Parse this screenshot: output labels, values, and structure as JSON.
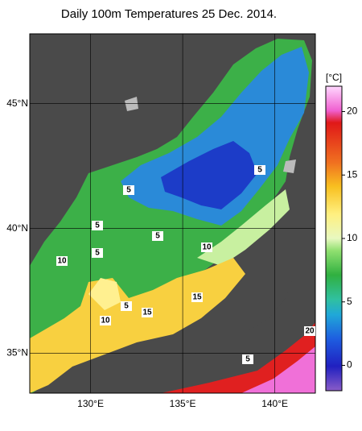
{
  "title": "Daily 100m Temperatures 25 Dec. 2014.",
  "lon_labels": [
    {
      "value": 130,
      "label": "130°E"
    },
    {
      "value": 135,
      "label": "135°E"
    },
    {
      "value": 140,
      "label": "140°E"
    }
  ],
  "lat_labels": [
    {
      "value": 45,
      "label": "45°N"
    },
    {
      "value": 40,
      "label": "40°N"
    },
    {
      "value": 35,
      "label": "35°N"
    }
  ],
  "lon_range": [
    126.7,
    142.2
  ],
  "lat_range": [
    33.4,
    47.8
  ],
  "colorbar": {
    "unit": "[°C]",
    "range": [
      -2,
      22
    ],
    "ticks": [
      0,
      5,
      10,
      15,
      20
    ]
  },
  "contour_labels": [
    5,
    5,
    5,
    5,
    5,
    5,
    5,
    10,
    10,
    10,
    15,
    15,
    20
  ]
}
